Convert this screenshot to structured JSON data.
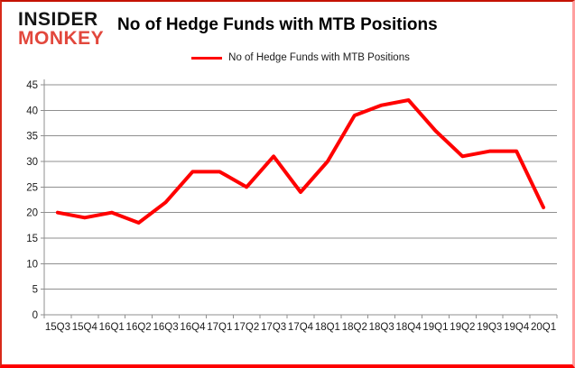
{
  "header": {
    "logo_line1": "INSIDER",
    "logo_line2": "MONKEY",
    "title": "No of Hedge Funds with MTB Positions"
  },
  "legend": {
    "label": "No of Hedge Funds with MTB Positions",
    "line_color": "#ff0000"
  },
  "colors": {
    "line": "#ff0000",
    "grid": "#8f8f8f",
    "text": "#1a1a1a",
    "background": "#ffffff",
    "frame_border": "#fe0000"
  },
  "chart_data": {
    "type": "line",
    "title": "No of Hedge Funds with MTB Positions",
    "categories": [
      "15Q3",
      "15Q4",
      "16Q1",
      "16Q2",
      "16Q3",
      "16Q4",
      "17Q1",
      "17Q2",
      "17Q3",
      "17Q4",
      "18Q1",
      "18Q2",
      "18Q3",
      "18Q4",
      "19Q1",
      "19Q2",
      "19Q3",
      "19Q4",
      "20Q1"
    ],
    "values": [
      20,
      19,
      20,
      18,
      22,
      28,
      28,
      25,
      31,
      24,
      30,
      39,
      41,
      42,
      36,
      31,
      32,
      32,
      21
    ],
    "ylim": [
      0,
      45
    ],
    "yticks": [
      0,
      5,
      10,
      15,
      20,
      25,
      30,
      35,
      40,
      45
    ],
    "grid": true,
    "legend": "No of Hedge Funds with MTB Positions",
    "legend_position": "top-center",
    "line_color": "#ff0000"
  }
}
